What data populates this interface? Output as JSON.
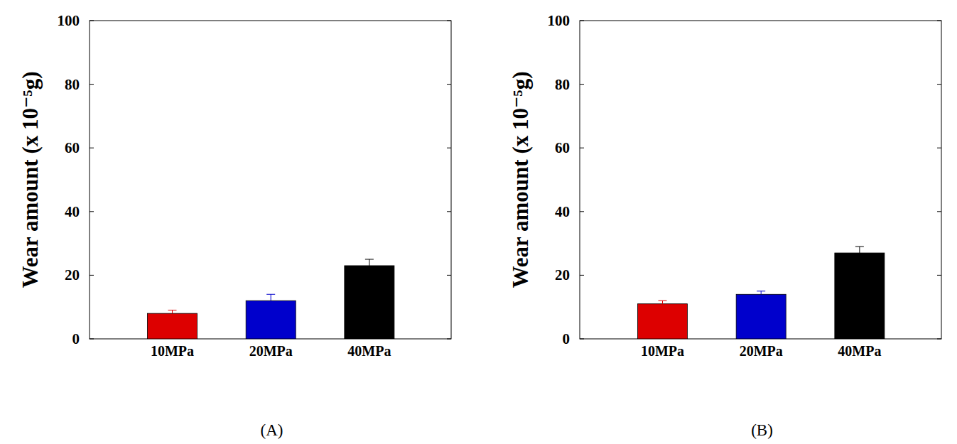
{
  "chart_data": [
    {
      "type": "bar",
      "title": "(A)",
      "y_label": "Wear amount (x 10⁻⁵g)",
      "categories": [
        "10MPa",
        "20MPa",
        "40MPa"
      ],
      "values": [
        8,
        12,
        23
      ],
      "errors": [
        1,
        2,
        2
      ],
      "colors": [
        "#dd0000",
        "#0000cc",
        "#000000"
      ],
      "ylim": [
        0,
        100
      ],
      "yticks": [
        0,
        20,
        40,
        60,
        80,
        100
      ],
      "grid": false
    },
    {
      "type": "bar",
      "title": "(B)",
      "y_label": "Wear amount (x 10⁻⁵g)",
      "categories": [
        "10MPa",
        "20MPa",
        "40MPa"
      ],
      "values": [
        11,
        14,
        27
      ],
      "errors": [
        1,
        1,
        2
      ],
      "colors": [
        "#dd0000",
        "#0000cc",
        "#000000"
      ],
      "ylim": [
        0,
        100
      ],
      "yticks": [
        0,
        20,
        40,
        60,
        80,
        100
      ],
      "grid": false
    }
  ]
}
